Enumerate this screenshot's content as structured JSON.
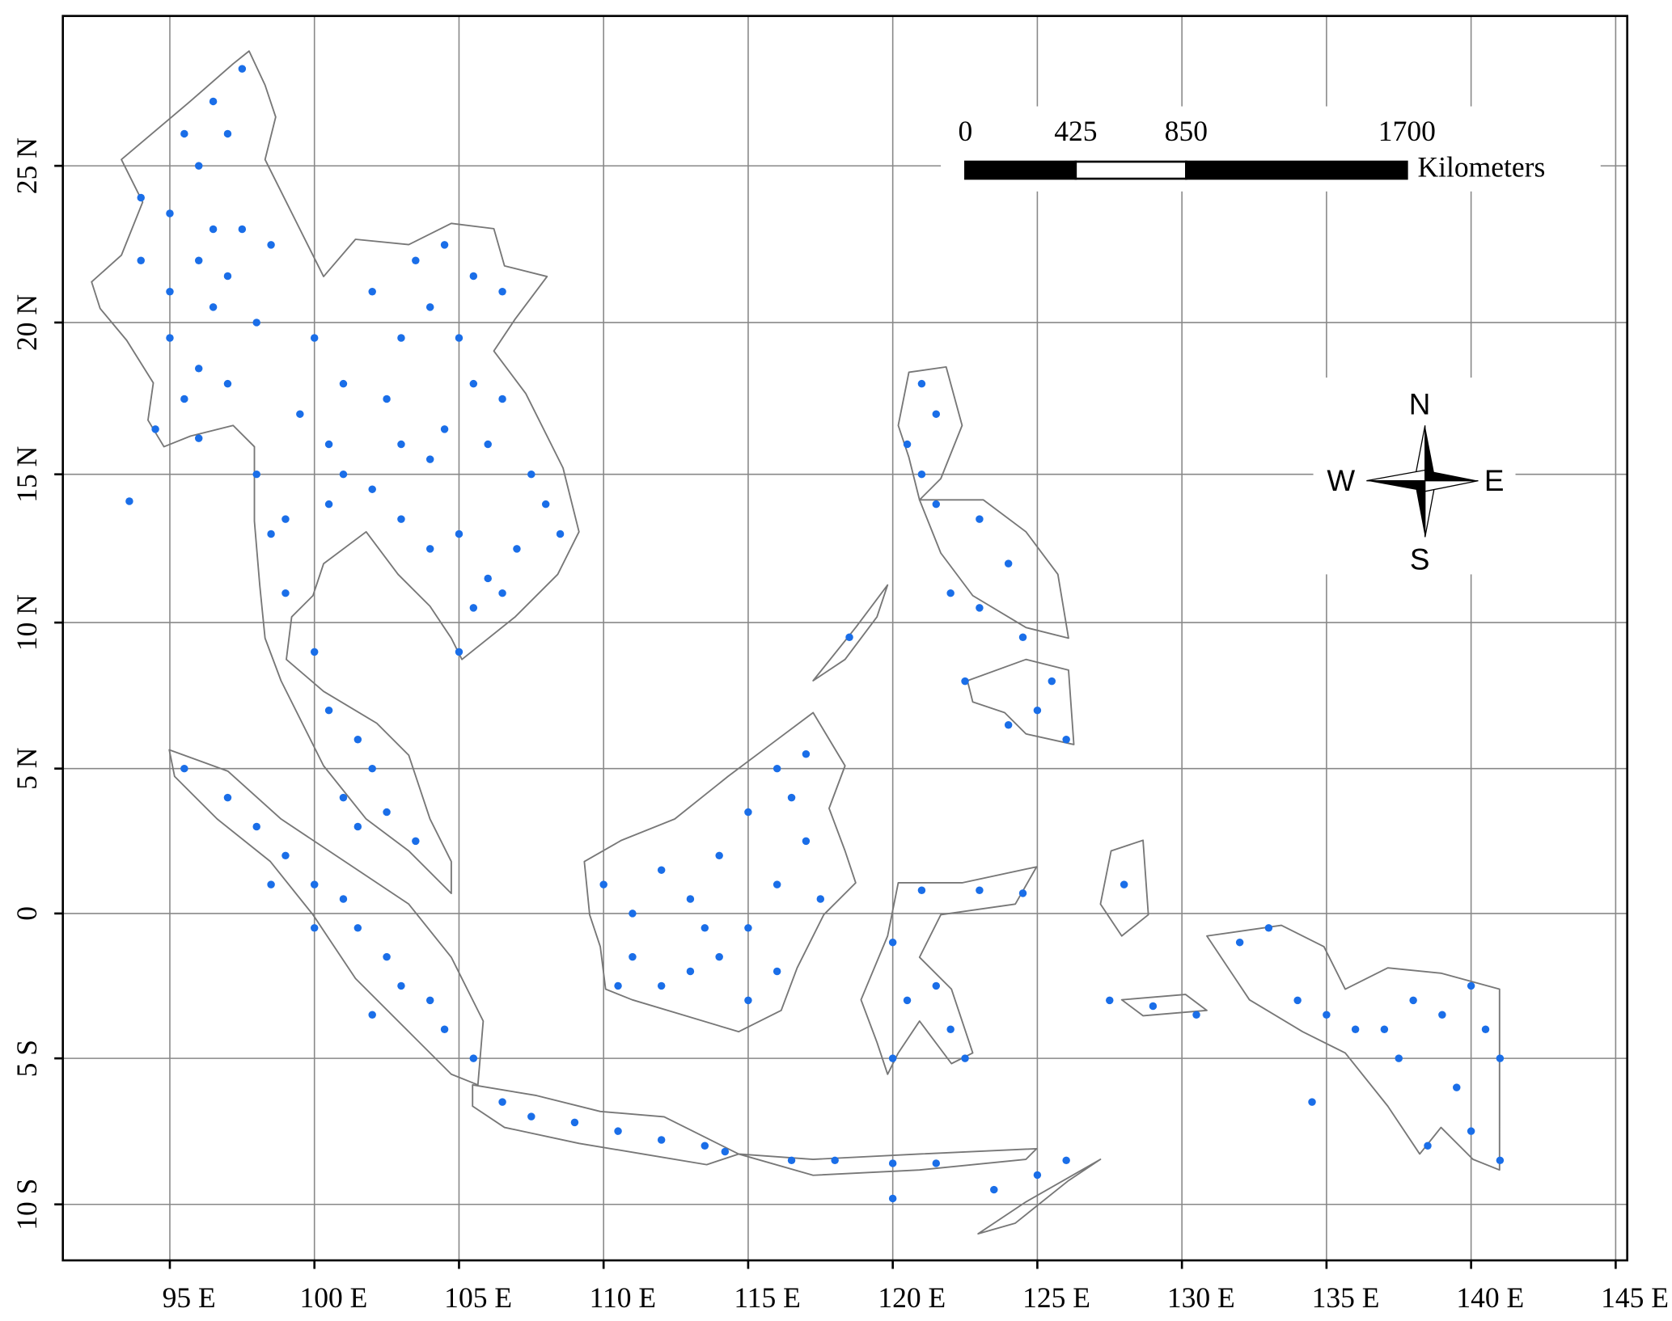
{
  "map": {
    "projection": "mercator",
    "xlim": [
      91.3,
      145.4
    ],
    "ylim": [
      -11.9,
      29.6
    ],
    "grid": true,
    "xticks": [
      {
        "value": 95,
        "label": "95  E"
      },
      {
        "value": 100,
        "label": "100  E"
      },
      {
        "value": 105,
        "label": "105  E"
      },
      {
        "value": 110,
        "label": "110  E"
      },
      {
        "value": 115,
        "label": "115  E"
      },
      {
        "value": 120,
        "label": "120  E"
      },
      {
        "value": 125,
        "label": "125  E"
      },
      {
        "value": 130,
        "label": "130  E"
      },
      {
        "value": 135,
        "label": "135  E"
      },
      {
        "value": 140,
        "label": "140  E"
      },
      {
        "value": 145,
        "label": "145  E"
      }
    ],
    "yticks": [
      {
        "value": 25,
        "label": "25  N"
      },
      {
        "value": 20,
        "label": "20  N"
      },
      {
        "value": 15,
        "label": "15  N"
      },
      {
        "value": 10,
        "label": "10  N"
      },
      {
        "value": 5,
        "label": "5  N"
      },
      0,
      {
        "value": -5,
        "label": "5  S"
      },
      {
        "value": -10,
        "label": "10  S"
      }
    ],
    "point_color": "#1a6ee8",
    "points": [
      [
        97.5,
        28
      ],
      [
        96.5,
        27
      ],
      [
        97,
        26
      ],
      [
        95.5,
        26
      ],
      [
        96,
        25
      ],
      [
        94,
        24
      ],
      [
        95,
        23.5
      ],
      [
        96.5,
        23
      ],
      [
        97.5,
        23
      ],
      [
        98.5,
        22.5
      ],
      [
        94,
        22
      ],
      [
        96,
        22
      ],
      [
        97,
        21.5
      ],
      [
        95,
        21
      ],
      [
        96.5,
        20.5
      ],
      [
        98,
        20
      ],
      [
        95,
        19.5
      ],
      [
        96,
        18.5
      ],
      [
        97,
        18
      ],
      [
        95.5,
        17.5
      ],
      [
        94.5,
        16.5
      ],
      [
        96,
        16.2
      ],
      [
        98,
        15
      ],
      [
        98.5,
        13
      ],
      [
        99,
        11
      ],
      [
        93.6,
        14.1
      ],
      [
        100,
        19.5
      ],
      [
        101,
        18
      ],
      [
        102.5,
        17.5
      ],
      [
        99.5,
        17
      ],
      [
        100.5,
        16
      ],
      [
        103,
        16
      ],
      [
        104,
        15.5
      ],
      [
        101,
        15
      ],
      [
        102,
        14.5
      ],
      [
        100.5,
        14
      ],
      [
        99,
        13.5
      ],
      [
        102,
        21
      ],
      [
        103.5,
        22
      ],
      [
        104.5,
        22.5
      ],
      [
        105.5,
        21.5
      ],
      [
        106.5,
        21
      ],
      [
        104,
        20.5
      ],
      [
        105,
        19.5
      ],
      [
        103,
        19.5
      ],
      [
        105.5,
        18
      ],
      [
        106.5,
        17.5
      ],
      [
        104.5,
        16.5
      ],
      [
        106,
        16
      ],
      [
        107.5,
        15
      ],
      [
        108,
        14
      ],
      [
        108.5,
        13
      ],
      [
        107,
        12.5
      ],
      [
        106,
        11.5
      ],
      [
        104,
        12.5
      ],
      [
        103,
        13.5
      ],
      [
        105,
        13
      ],
      [
        105.5,
        10.5
      ],
      [
        106.5,
        11
      ],
      [
        105,
        9
      ],
      [
        100,
        9
      ],
      [
        100.5,
        7
      ],
      [
        101.5,
        6
      ],
      [
        102,
        5
      ],
      [
        101,
        4
      ],
      [
        102.5,
        3.5
      ],
      [
        103.5,
        2.5
      ],
      [
        101.5,
        3
      ],
      [
        95.5,
        5
      ],
      [
        97,
        4
      ],
      [
        98,
        3
      ],
      [
        99,
        2
      ],
      [
        100,
        1
      ],
      [
        101,
        0.5
      ],
      [
        101.5,
        -0.5
      ],
      [
        102.5,
        -1.5
      ],
      [
        103,
        -2.5
      ],
      [
        104,
        -3
      ],
      [
        104.5,
        -4
      ],
      [
        105.5,
        -5
      ],
      [
        102,
        -3.5
      ],
      [
        100,
        -0.5
      ],
      [
        98.5,
        1
      ],
      [
        106.5,
        -6.5
      ],
      [
        107.5,
        -7
      ],
      [
        109,
        -7.2
      ],
      [
        110.5,
        -7.5
      ],
      [
        112,
        -7.8
      ],
      [
        113.5,
        -8
      ],
      [
        114.2,
        -8.2
      ],
      [
        110,
        1
      ],
      [
        111,
        0
      ],
      [
        112,
        1.5
      ],
      [
        113,
        0.5
      ],
      [
        114,
        2
      ],
      [
        115,
        3.5
      ],
      [
        116,
        5
      ],
      [
        117,
        5.5
      ],
      [
        116.5,
        4
      ],
      [
        117,
        2.5
      ],
      [
        116,
        1
      ],
      [
        115,
        -0.5
      ],
      [
        114,
        -1.5
      ],
      [
        113,
        -2
      ],
      [
        112,
        -2.5
      ],
      [
        111,
        -1.5
      ],
      [
        110.5,
        -2.5
      ],
      [
        115,
        -3
      ],
      [
        116,
        -2
      ],
      [
        117.5,
        0.5
      ],
      [
        113.5,
        -0.5
      ],
      [
        120,
        -1
      ],
      [
        121,
        0.8
      ],
      [
        123,
        0.8
      ],
      [
        124.5,
        0.7
      ],
      [
        120.5,
        -3
      ],
      [
        121.5,
        -2.5
      ],
      [
        122,
        -4
      ],
      [
        120,
        -5
      ],
      [
        122.5,
        -5
      ],
      [
        116.5,
        -8.5
      ],
      [
        118,
        -8.5
      ],
      [
        120,
        -8.6
      ],
      [
        121.5,
        -8.6
      ],
      [
        123.5,
        -9.5
      ],
      [
        125,
        -9
      ],
      [
        126,
        -8.5
      ],
      [
        120,
        -9.8
      ],
      [
        121,
        18
      ],
      [
        121.5,
        17
      ],
      [
        120.5,
        16
      ],
      [
        121,
        15
      ],
      [
        121.5,
        14
      ],
      [
        123,
        13.5
      ],
      [
        124,
        12
      ],
      [
        122,
        11
      ],
      [
        123,
        10.5
      ],
      [
        124.5,
        9.5
      ],
      [
        125.5,
        8
      ],
      [
        125,
        7
      ],
      [
        124,
        6.5
      ],
      [
        122.5,
        8
      ],
      [
        126,
        6
      ],
      [
        118.5,
        9.5
      ],
      [
        128,
        1
      ],
      [
        127.5,
        -3
      ],
      [
        129,
        -3.2
      ],
      [
        130.5,
        -3.5
      ],
      [
        132,
        -1
      ],
      [
        133,
        -0.5
      ],
      [
        134,
        -3
      ],
      [
        135,
        -3.5
      ],
      [
        136,
        -4
      ],
      [
        137,
        -4
      ],
      [
        138,
        -3
      ],
      [
        139,
        -3.5
      ],
      [
        140,
        -2.5
      ],
      [
        140.5,
        -4
      ],
      [
        141,
        -5
      ],
      [
        139.5,
        -6
      ],
      [
        140,
        -7.5
      ],
      [
        141,
        -8.5
      ],
      [
        138.5,
        -8
      ],
      [
        137.5,
        -5
      ],
      [
        134.5,
        -6.5
      ]
    ],
    "scale_bar": {
      "ticks": [
        0,
        425,
        850,
        1700
      ],
      "unit": "Kilometers"
    },
    "compass": {
      "north": "N",
      "west": "W",
      "east": "E",
      "south": "S"
    }
  }
}
